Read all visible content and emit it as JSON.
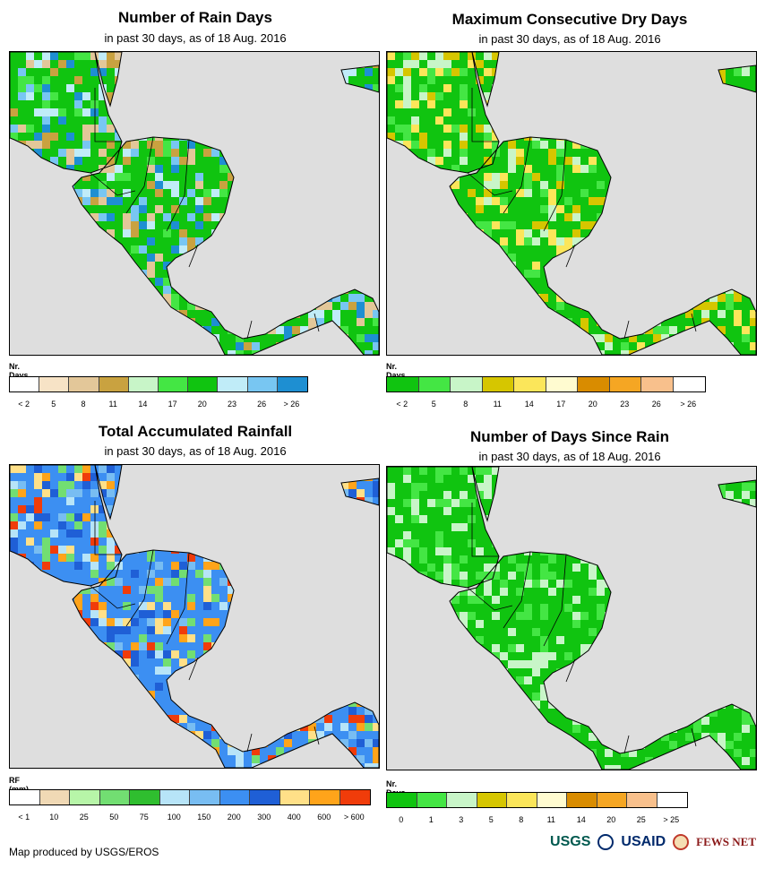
{
  "panels": [
    {
      "id": "rain-days",
      "title": "Number of Rain Days",
      "subtitle": "in past 30 days, as of 18 Aug. 2016",
      "legend_label": "Nr. Days",
      "colors": [
        "#ffffff",
        "#f7e3c6",
        "#e3c799",
        "#c9a240",
        "#c8f5c8",
        "#44e644",
        "#10c410",
        "#c0ecf8",
        "#78c6f2",
        "#1e8fd2"
      ],
      "ticks": [
        "< 2",
        "5",
        "8",
        "11",
        "14",
        "17",
        "20",
        "23",
        "26",
        "> 26"
      ],
      "map_palette": [
        "#10c410",
        "#44e644",
        "#c0ecf8",
        "#78c6f2",
        "#1e8fd2",
        "#e3c799",
        "#c9a240"
      ]
    },
    {
      "id": "max-dry-days",
      "title": "Maximum Consecutive Dry Days",
      "subtitle": "in past 30 days, as of 18 Aug. 2016",
      "legend_label": "Nr. Days",
      "colors": [
        "#10c410",
        "#44e644",
        "#c8f5c8",
        "#d6c600",
        "#fbe65a",
        "#fffbd0",
        "#d98c00",
        "#f5a623",
        "#f8c08c",
        "#ffffff"
      ],
      "ticks": [
        "< 2",
        "5",
        "8",
        "11",
        "14",
        "17",
        "20",
        "23",
        "26",
        "> 26"
      ],
      "map_palette": [
        "#10c410",
        "#44e644",
        "#c8f5c8",
        "#d6c600",
        "#fbe65a"
      ]
    },
    {
      "id": "total-rainfall",
      "title": "Total Accumulated Rainfall",
      "subtitle": "in past 30 days, as of 18 Aug. 2016",
      "legend_label": "RF (mm)",
      "colors": [
        "#ffffff",
        "#f0d9b5",
        "#b7f5a8",
        "#72de72",
        "#2fbe2f",
        "#b7e4f8",
        "#78bdf2",
        "#3c8ff2",
        "#1f5fd6",
        "#ffe088",
        "#ffa41a",
        "#f03c0a"
      ],
      "ticks": [
        "< 1",
        "10",
        "25",
        "50",
        "75",
        "100",
        "150",
        "200",
        "300",
        "400",
        "600",
        "> 600"
      ],
      "map_palette": [
        "#3c8ff2",
        "#1f5fd6",
        "#78bdf2",
        "#b7e4f8",
        "#ffa41a",
        "#ffe088",
        "#f03c0a",
        "#72de72"
      ]
    },
    {
      "id": "days-since-rain",
      "title": "Number of Days Since Rain",
      "subtitle": "in past 30 days, as of 18 Aug. 2016",
      "legend_label": "Nr. Days",
      "colors": [
        "#10c410",
        "#44e644",
        "#c8f5c8",
        "#d6c600",
        "#fbe65a",
        "#fffbd0",
        "#d98c00",
        "#f5a623",
        "#f8c08c",
        "#ffffff"
      ],
      "ticks": [
        "0",
        "1",
        "3",
        "5",
        "8",
        "11",
        "14",
        "20",
        "25",
        "> 25"
      ],
      "map_palette": [
        "#10c410",
        "#44e644",
        "#c8f5c8"
      ]
    }
  ],
  "footer": "Map produced by USGS/EROS",
  "logos": {
    "usgs": "USGS",
    "usaid": "USAID",
    "fews": "FEWS NET"
  }
}
